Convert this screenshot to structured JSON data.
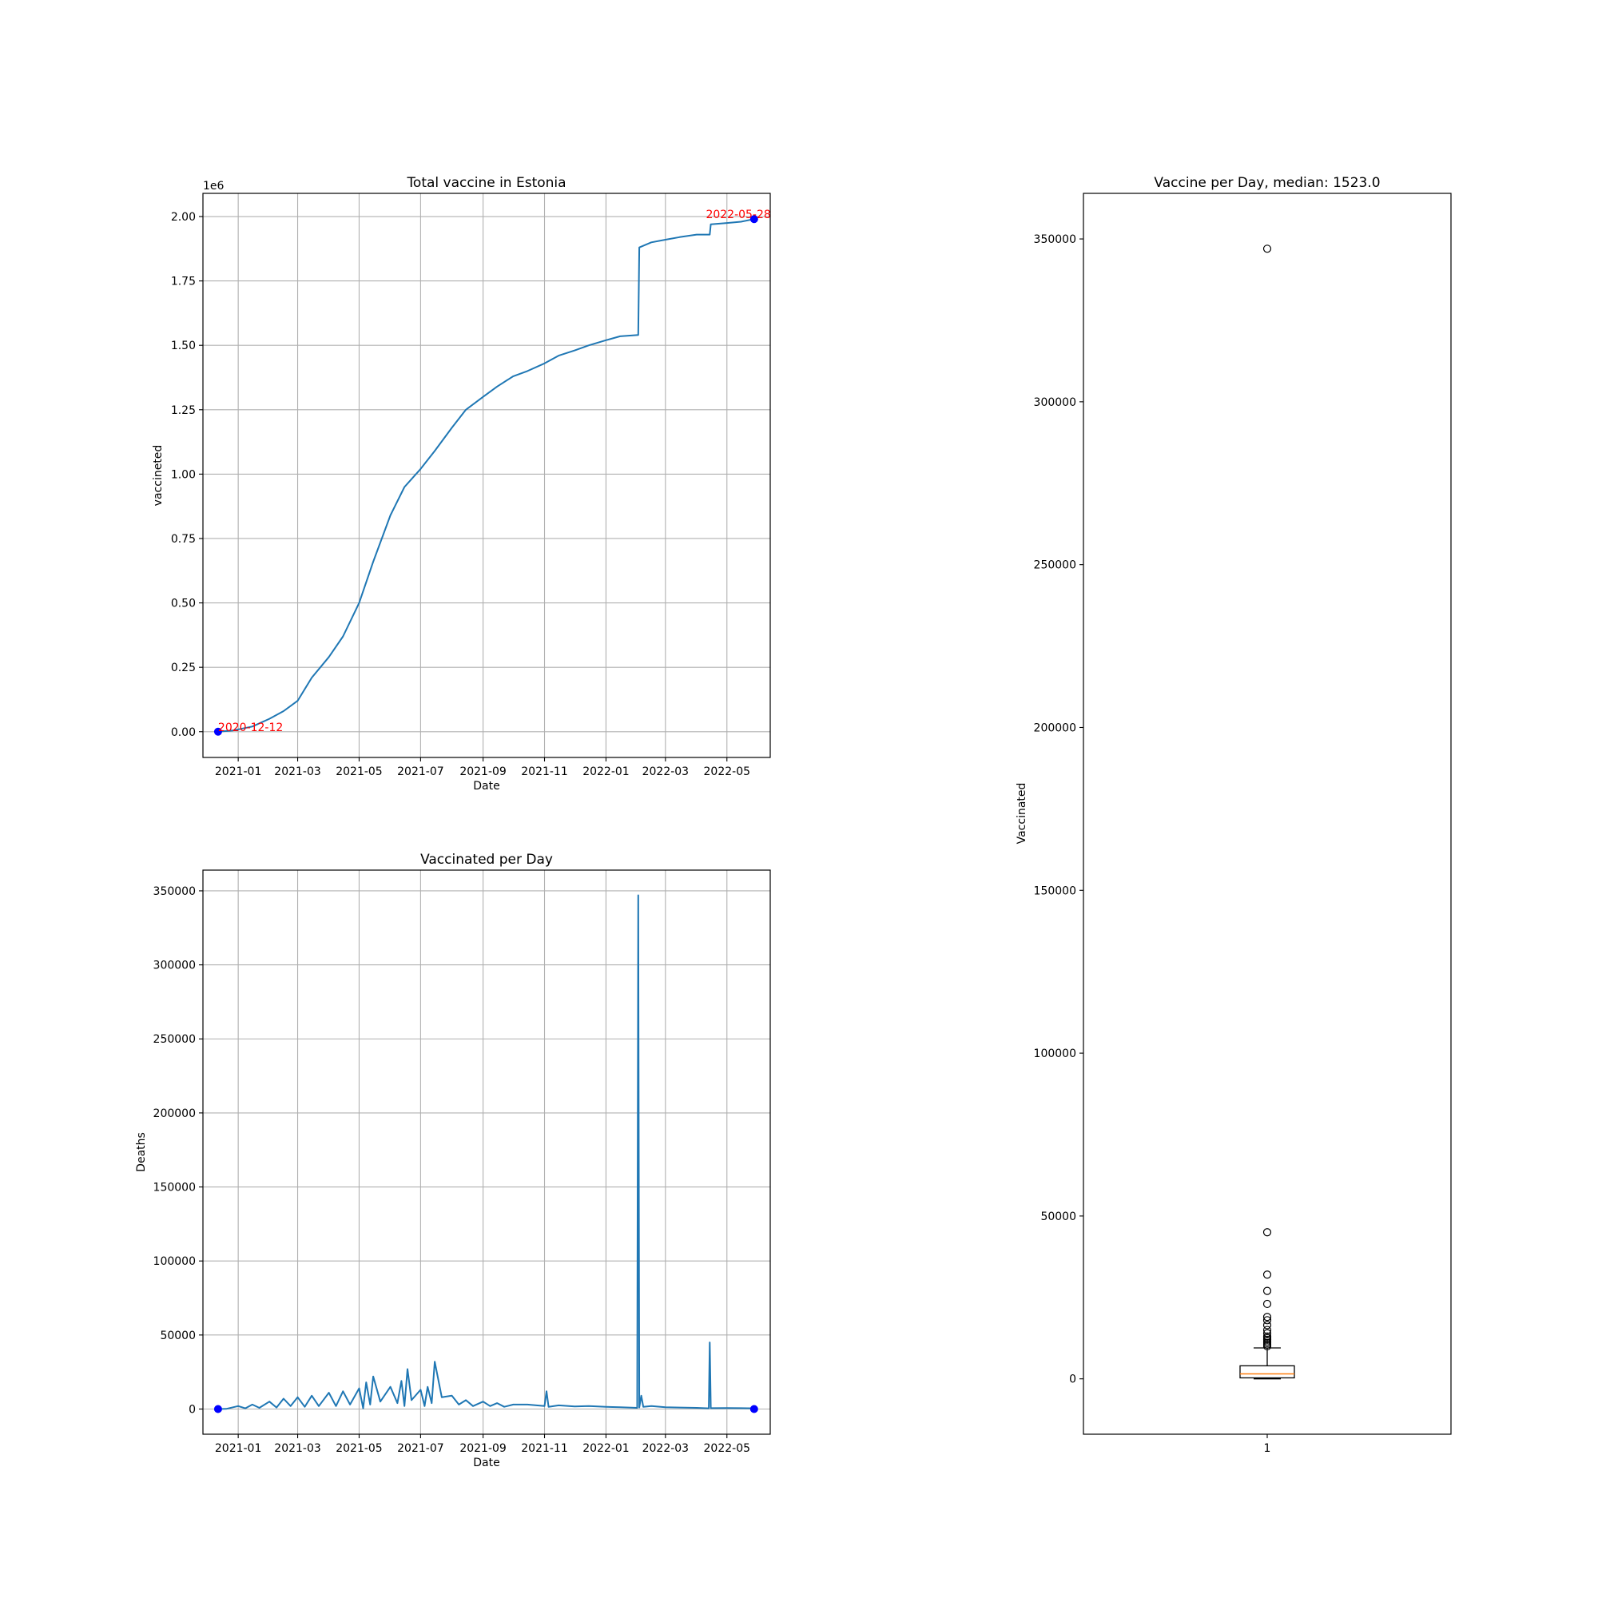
{
  "chart_data": [
    {
      "type": "line",
      "title": "Total vaccine in Estonia",
      "xlabel": "Date",
      "ylabel": "vaccineted",
      "y_offset_label": "1e6",
      "x_ticks": [
        "2021-01",
        "2021-03",
        "2021-05",
        "2021-07",
        "2021-09",
        "2021-11",
        "2022-01",
        "2022-03",
        "2022-05"
      ],
      "y_ticks": [
        "0.00",
        "0.25",
        "0.50",
        "0.75",
        "1.00",
        "1.25",
        "1.50",
        "1.75",
        "2.00"
      ],
      "xlim": [
        "2020-11-27",
        "2022-06-13"
      ],
      "ylim": [
        -0.1,
        2.09
      ],
      "grid": true,
      "series_color": "#1f77b4",
      "series": [
        {
          "x": [
            "2020-12-12",
            "2020-12-27",
            "2021-01-15",
            "2021-02-01",
            "2021-02-15",
            "2021-03-01",
            "2021-03-15",
            "2021-04-01",
            "2021-04-15",
            "2021-05-01",
            "2021-05-15",
            "2021-06-01",
            "2021-06-15",
            "2021-07-01",
            "2021-07-15",
            "2021-08-01",
            "2021-08-15",
            "2021-09-01",
            "2021-09-15",
            "2021-10-01",
            "2021-10-15",
            "2021-11-01",
            "2021-11-15",
            "2021-12-01",
            "2021-12-15",
            "2022-01-01",
            "2022-01-15",
            "2022-02-02",
            "2022-02-03",
            "2022-02-15",
            "2022-03-01",
            "2022-03-15",
            "2022-04-01",
            "2022-04-14",
            "2022-04-15",
            "2022-05-01",
            "2022-05-15",
            "2022-05-28"
          ],
          "y": [
            0.0,
            0.005,
            0.02,
            0.05,
            0.08,
            0.12,
            0.21,
            0.29,
            0.37,
            0.5,
            0.66,
            0.84,
            0.95,
            1.02,
            1.09,
            1.18,
            1.25,
            1.3,
            1.34,
            1.38,
            1.4,
            1.43,
            1.46,
            1.48,
            1.5,
            1.52,
            1.535,
            1.54,
            1.88,
            1.9,
            1.91,
            1.92,
            1.93,
            1.93,
            1.97,
            1.975,
            1.98,
            1.99
          ]
        }
      ],
      "markers": [
        {
          "x": "2020-12-12",
          "y": 0.0,
          "label": "2020-12-12",
          "color": "#0000ff"
        },
        {
          "x": "2022-05-28",
          "y": 1.99,
          "label": "2022-05-28",
          "color": "#0000ff"
        }
      ],
      "annotation_color": "#ff0000"
    },
    {
      "type": "line",
      "title": "Vaccinated per Day",
      "xlabel": "Date",
      "ylabel": "Deaths",
      "x_ticks": [
        "2021-01",
        "2021-03",
        "2021-05",
        "2021-07",
        "2021-09",
        "2021-11",
        "2022-01",
        "2022-03",
        "2022-05"
      ],
      "y_ticks": [
        "0",
        "50000",
        "100000",
        "150000",
        "200000",
        "250000",
        "300000",
        "350000"
      ],
      "xlim": [
        "2020-11-27",
        "2022-06-13"
      ],
      "ylim": [
        -17000,
        364000
      ],
      "grid": true,
      "series_color": "#1f77b4",
      "series": [
        {
          "x": [
            "2020-12-12",
            "2020-12-20",
            "2021-01-01",
            "2021-01-08",
            "2021-01-15",
            "2021-01-22",
            "2021-02-01",
            "2021-02-08",
            "2021-02-15",
            "2021-02-22",
            "2021-03-01",
            "2021-03-08",
            "2021-03-15",
            "2021-03-22",
            "2021-04-01",
            "2021-04-08",
            "2021-04-15",
            "2021-04-22",
            "2021-05-01",
            "2021-05-05",
            "2021-05-08",
            "2021-05-12",
            "2021-05-15",
            "2021-05-22",
            "2021-06-01",
            "2021-06-08",
            "2021-06-12",
            "2021-06-15",
            "2021-06-18",
            "2021-06-22",
            "2021-07-01",
            "2021-07-05",
            "2021-07-08",
            "2021-07-12",
            "2021-07-15",
            "2021-07-22",
            "2021-08-01",
            "2021-08-08",
            "2021-08-15",
            "2021-08-22",
            "2021-09-01",
            "2021-09-08",
            "2021-09-15",
            "2021-09-22",
            "2021-10-01",
            "2021-10-15",
            "2021-11-01",
            "2021-11-03",
            "2021-11-05",
            "2021-11-15",
            "2021-12-01",
            "2021-12-15",
            "2022-01-01",
            "2022-01-15",
            "2022-02-01",
            "2022-02-02",
            "2022-02-03",
            "2022-02-05",
            "2022-02-07",
            "2022-02-15",
            "2022-03-01",
            "2022-03-15",
            "2022-04-01",
            "2022-04-13",
            "2022-04-14",
            "2022-04-15",
            "2022-05-01",
            "2022-05-15",
            "2022-05-28"
          ],
          "y": [
            0,
            100,
            2000,
            500,
            3000,
            800,
            5000,
            1000,
            7000,
            2000,
            8000,
            1500,
            9000,
            2000,
            11000,
            2000,
            12000,
            3000,
            14000,
            500,
            18000,
            3000,
            22000,
            5000,
            15000,
            4000,
            19000,
            2000,
            27000,
            6000,
            13000,
            2000,
            15000,
            4000,
            32000,
            8000,
            9000,
            3000,
            6000,
            2000,
            5000,
            2000,
            4000,
            1500,
            3000,
            3000,
            2000,
            12000,
            1500,
            2500,
            1800,
            2000,
            1500,
            1200,
            800,
            347000,
            1000,
            9000,
            1500,
            2000,
            1200,
            1000,
            800,
            500,
            45000,
            600,
            700,
            600,
            500
          ]
        }
      ],
      "markers": [
        {
          "x": "2020-12-12",
          "y": 0,
          "color": "#0000ff"
        },
        {
          "x": "2022-05-28",
          "y": 0,
          "color": "#0000ff"
        }
      ]
    },
    {
      "type": "box",
      "title": "Vaccine per Day, median: 1523.0",
      "xlabel": "",
      "ylabel": "Vaccinated",
      "x_ticks": [
        "1"
      ],
      "y_ticks": [
        "0",
        "50000",
        "100000",
        "150000",
        "200000",
        "250000",
        "300000",
        "350000"
      ],
      "ylim": [
        -17000,
        364000
      ],
      "grid": false,
      "box": {
        "category": "1",
        "min": 0,
        "q1": 300,
        "median": 1523,
        "q3": 4000,
        "whisker_high": 9500,
        "outliers": [
          347000,
          45000,
          32000,
          27000,
          23000,
          19000,
          18000,
          16500,
          15000,
          14000,
          13000,
          12500,
          12000,
          11500,
          11000,
          10500,
          10000
        ]
      },
      "median_color": "#ff7f0e"
    }
  ]
}
